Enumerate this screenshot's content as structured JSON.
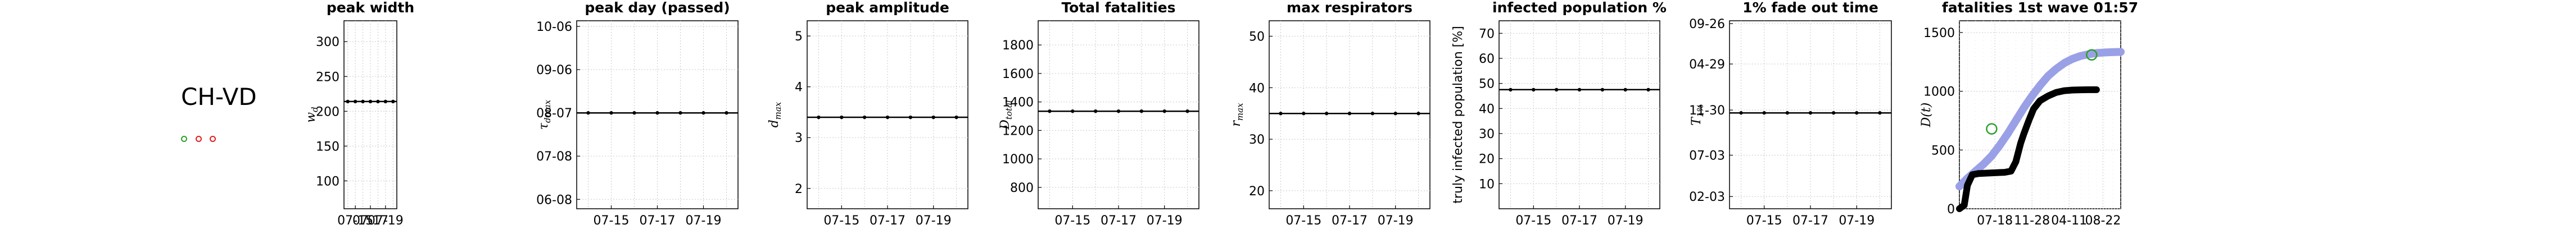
{
  "region": {
    "label": "CH-VD",
    "status_dots": [
      "#2ca02c",
      "#e41a1c",
      "#e41a1c"
    ]
  },
  "chart_data": [
    {
      "type": "line",
      "title": "peak width",
      "ylabel": "w_d",
      "ylabel_math": {
        "base": "w",
        "sub": "d"
      },
      "x": [
        "07-14",
        "07-15",
        "07-16",
        "07-17",
        "07-18",
        "07-19",
        "07-20"
      ],
      "xticks": [
        "07-15",
        "07-17",
        "07-19"
      ],
      "ylim": [
        60,
        330
      ],
      "yticks": [
        100,
        150,
        200,
        250,
        300
      ],
      "ytick_labels": [
        "100",
        "150",
        "200",
        "250",
        "300"
      ],
      "values": [
        214,
        214,
        214,
        214,
        214,
        214,
        214
      ],
      "grid": true
    },
    {
      "type": "line",
      "title": "peak day (passed)",
      "ylabel": "τ_dmax",
      "ylabel_math": {
        "base": "τ",
        "sub": "dmax"
      },
      "x": [
        "07-14",
        "07-15",
        "07-16",
        "07-17",
        "07-18",
        "07-19",
        "07-20"
      ],
      "xticks": [
        "07-15",
        "07-17",
        "07-19"
      ],
      "ylim": [
        0,
        10
      ],
      "yticks": [
        0.5,
        2.8,
        5.1,
        7.4,
        9.7
      ],
      "ytick_labels": [
        "06-08",
        "07-08",
        "08-07",
        "09-06",
        "10-06"
      ],
      "values": [
        5.1,
        5.1,
        5.1,
        5.1,
        5.1,
        5.1,
        5.1
      ],
      "grid": true
    },
    {
      "type": "line",
      "title": "peak amplitude",
      "ylabel": "d_max",
      "ylabel_math": {
        "base": "d",
        "sub": "max"
      },
      "x": [
        "07-14",
        "07-15",
        "07-16",
        "07-17",
        "07-18",
        "07-19",
        "07-20"
      ],
      "xticks": [
        "07-15",
        "07-17",
        "07-19"
      ],
      "ylim": [
        1.6,
        5.3
      ],
      "yticks": [
        2,
        3,
        4,
        5
      ],
      "ytick_labels": [
        "2",
        "3",
        "4",
        "5"
      ],
      "values": [
        3.4,
        3.4,
        3.4,
        3.4,
        3.4,
        3.4,
        3.4
      ],
      "grid": true
    },
    {
      "type": "line",
      "title": "Total fatalities",
      "ylabel": "D_total",
      "ylabel_math": {
        "base": "D",
        "sub": "total"
      },
      "x": [
        "07-14",
        "07-15",
        "07-16",
        "07-17",
        "07-18",
        "07-19",
        "07-20"
      ],
      "xticks": [
        "07-15",
        "07-17",
        "07-19"
      ],
      "ylim": [
        650,
        1970
      ],
      "yticks": [
        800,
        1000,
        1200,
        1400,
        1600,
        1800
      ],
      "ytick_labels": [
        "800",
        "1000",
        "1200",
        "1400",
        "1600",
        "1800"
      ],
      "values": [
        1335,
        1335,
        1335,
        1335,
        1335,
        1335,
        1335
      ],
      "grid": true
    },
    {
      "type": "line",
      "title": "max respirators",
      "ylabel": "r_max",
      "ylabel_math": {
        "base": "r",
        "sub": "max"
      },
      "x": [
        "07-14",
        "07-15",
        "07-16",
        "07-17",
        "07-18",
        "07-19",
        "07-20"
      ],
      "xticks": [
        "07-15",
        "07-17",
        "07-19"
      ],
      "ylim": [
        16.5,
        53
      ],
      "yticks": [
        20,
        30,
        40,
        50
      ],
      "ytick_labels": [
        "20",
        "30",
        "40",
        "50"
      ],
      "values": [
        35,
        35,
        35,
        35,
        35,
        35,
        35
      ],
      "grid": true
    },
    {
      "type": "line",
      "title": "infected population %",
      "ylabel": "truly infected population [%]",
      "x": [
        "07-14",
        "07-15",
        "07-16",
        "07-17",
        "07-18",
        "07-19",
        "07-20"
      ],
      "xticks": [
        "07-15",
        "07-17",
        "07-19"
      ],
      "ylim": [
        0,
        75
      ],
      "yticks": [
        10,
        20,
        30,
        40,
        50,
        60,
        70
      ],
      "ytick_labels": [
        "10",
        "20",
        "30",
        "40",
        "50",
        "60",
        "70"
      ],
      "values": [
        47.5,
        47.5,
        47.5,
        47.5,
        47.5,
        47.5,
        47.5
      ],
      "grid": true
    },
    {
      "type": "line",
      "title": "1% fade out time",
      "ylabel": "T_1%",
      "ylabel_math": {
        "base": "T",
        "sub": "1%"
      },
      "x": [
        "07-14",
        "07-15",
        "07-16",
        "07-17",
        "07-18",
        "07-19",
        "07-20"
      ],
      "xticks": [
        "07-15",
        "07-17",
        "07-19"
      ],
      "ylim": [
        0,
        10
      ],
      "yticks": [
        0.65,
        2.85,
        5.25,
        7.7,
        9.85
      ],
      "ytick_labels": [
        "02-03",
        "07-03",
        "11-30",
        "04-29",
        "09-26"
      ],
      "values": [
        5.1,
        5.1,
        5.1,
        5.1,
        5.1,
        5.1,
        5.1
      ],
      "grid": true
    },
    {
      "type": "line",
      "title": "fatalities 1st wave 01:57",
      "ylabel": "D(t)",
      "ylabel_math": {
        "base": "D",
        "sub": "",
        "suffix": "(t)"
      },
      "x_range": [
        0,
        100
      ],
      "xticks": [
        "07-18",
        "11-28",
        "04-11",
        "08-22"
      ],
      "xtick_positions": [
        22,
        45,
        68,
        89
      ],
      "ylim": [
        0,
        1600
      ],
      "yticks": [
        0,
        500,
        1000,
        1500
      ],
      "ytick_labels": [
        "0",
        "500",
        "1000",
        "1500"
      ],
      "grid": true,
      "series": [
        {
          "color": "#9aa0e6",
          "x": [
            0,
            5,
            10,
            15,
            20,
            25,
            30,
            35,
            40,
            45,
            50,
            55,
            60,
            65,
            70,
            75,
            80,
            85,
            90,
            95,
            100
          ],
          "values": [
            190,
            260,
            320,
            380,
            450,
            540,
            640,
            750,
            860,
            960,
            1050,
            1130,
            1190,
            1240,
            1275,
            1300,
            1315,
            1325,
            1330,
            1333,
            1335
          ]
        },
        {
          "color": "#000000",
          "x": [
            0,
            3,
            5,
            8,
            12,
            20,
            28,
            32,
            35,
            38,
            40,
            43,
            46,
            50,
            55,
            60,
            65,
            70,
            75,
            80,
            85
          ],
          "values": [
            0,
            30,
            200,
            290,
            300,
            305,
            310,
            320,
            400,
            560,
            640,
            750,
            850,
            920,
            960,
            990,
            1005,
            1010,
            1012,
            1013,
            1013
          ]
        }
      ],
      "markers": [
        {
          "color": "#2ca02c",
          "x": [
            20,
            82
          ],
          "values": [
            680,
            1310
          ]
        }
      ]
    }
  ]
}
